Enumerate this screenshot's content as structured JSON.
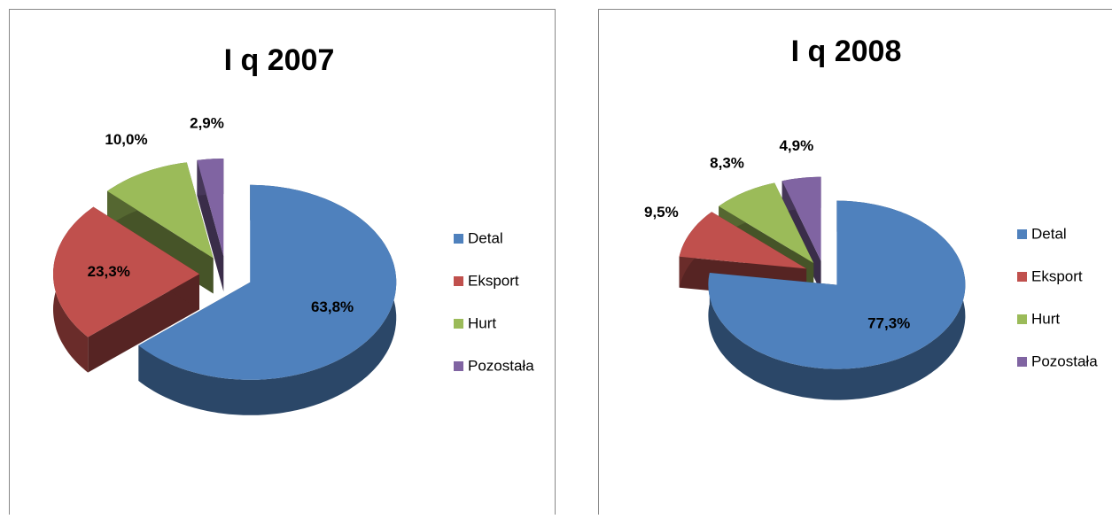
{
  "chart_data": [
    {
      "type": "pie",
      "title": "I q 2007",
      "categories": [
        "Detal",
        "Eksport",
        "Hurt",
        "Pozostała"
      ],
      "values": [
        63.8,
        23.3,
        10.0,
        2.9
      ],
      "value_labels": [
        "63,8%",
        "23,3%",
        "10,0%",
        "2,9%"
      ],
      "colors": [
        "#4f81bd",
        "#c0504d",
        "#9bbb59",
        "#8064a2"
      ],
      "legend": "right"
    },
    {
      "type": "pie",
      "title": "I q 2008",
      "categories": [
        "Detal",
        "Eksport",
        "Hurt",
        "Pozostała"
      ],
      "values": [
        77.3,
        9.5,
        8.3,
        4.9
      ],
      "value_labels": [
        "77,3%",
        "9,5%",
        "8,3%",
        "4,9%"
      ],
      "colors": [
        "#4f81bd",
        "#c0504d",
        "#9bbb59",
        "#8064a2"
      ],
      "legend": "right"
    }
  ]
}
